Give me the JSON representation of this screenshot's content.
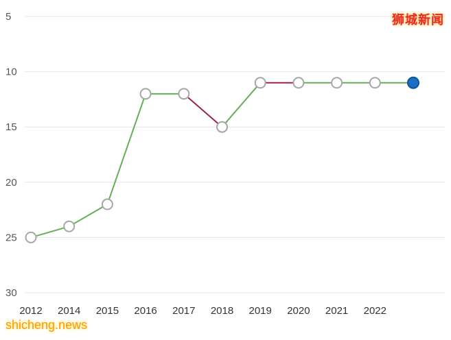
{
  "watermarks": {
    "top_right": "狮城新闻",
    "bottom_left": "shicheng.news"
  },
  "chart_data": {
    "type": "line",
    "title": "",
    "xlabel": "",
    "ylabel": "",
    "x_labels": [
      "2012",
      "2014",
      "2015",
      "2016",
      "2017",
      "2018",
      "2019",
      "2020",
      "2021",
      "2022",
      ""
    ],
    "values": [
      25,
      24,
      22,
      12,
      12,
      15,
      11,
      11,
      11,
      11,
      11
    ],
    "y_ticks": [
      "5",
      "10",
      "15",
      "20",
      "25",
      "30"
    ],
    "y_axis": {
      "min": 5,
      "max": 30,
      "inverted": true
    },
    "grid": "horizontal",
    "legend": "none",
    "colors": {
      "up_segment": "#61b054",
      "down_segment": "#a02040",
      "grid_line": "#e6e6e6",
      "y_tick_text": "#555555",
      "x_tick_text": "#333333"
    },
    "segment_colors": [
      "#61b054",
      "#61b054",
      "#61b054",
      "#61b054",
      "#a02040",
      "#61b054",
      "#a02040",
      "#61b054",
      "#61b054",
      "#61b054"
    ],
    "marker": {
      "fill": "#ffffff",
      "stroke": "#a6a6a6"
    },
    "last_marker": {
      "fill": "#1b6ec2",
      "stroke": "#0f5699"
    }
  }
}
